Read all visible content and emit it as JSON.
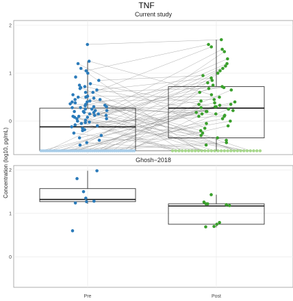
{
  "title": "TNF",
  "ylabel": "Concentration (log10, pg/mL)",
  "x_ticks": [
    "Pre",
    "Post"
  ],
  "colors": {
    "pre": "#2b7bba",
    "post": "#3aa02c",
    "pre_low": "#a9cde8",
    "post_low": "#a6d88a",
    "panel_border": "#9a9a9a",
    "grid": "#ebebeb"
  },
  "chart_data": [
    {
      "type": "box",
      "panel_title": "Current study",
      "categories": [
        "Pre",
        "Post"
      ],
      "ylim": [
        -0.7,
        2.1
      ],
      "yticks": [
        0,
        1,
        2
      ],
      "grid": true,
      "paired_lines": true,
      "boxes": [
        {
          "name": "Pre",
          "q1": -0.62,
          "median": -0.12,
          "q3": 0.27,
          "whisker_low": -0.62,
          "whisker_high": 1.25
        },
        {
          "name": "Post",
          "q1": -0.35,
          "median": 0.27,
          "q3": 0.72,
          "whisker_low": -0.62,
          "whisker_high": 1.7
        }
      ],
      "pre_values": [
        1.6,
        1.25,
        1.2,
        1.1,
        1.05,
        1.0,
        0.92,
        0.85,
        0.78,
        0.72,
        0.7,
        0.65,
        0.6,
        0.55,
        0.52,
        0.5,
        0.48,
        0.45,
        0.42,
        0.4,
        0.38,
        0.36,
        0.33,
        0.3,
        0.28,
        0.25,
        0.22,
        0.2,
        0.18,
        0.15,
        0.12,
        0.1,
        0.08,
        0.05,
        0.02,
        0.0,
        -0.02,
        -0.05,
        -0.08,
        -0.1,
        -0.15,
        -0.2,
        -0.25,
        -0.3,
        -0.35,
        -0.4,
        -0.45,
        -0.5,
        0.25,
        0.2,
        0.15,
        0.3,
        0.1,
        0.05,
        0.35,
        0.4,
        -0.12,
        -0.18,
        0.22,
        0.18,
        0.12,
        0.28,
        0.32,
        0.08,
        -0.03,
        0.45,
        0.5,
        0.6,
        0.68,
        0.75
      ],
      "post_values": [
        1.7,
        1.6,
        1.55,
        1.5,
        1.45,
        1.3,
        1.2,
        1.15,
        1.1,
        1.05,
        1.0,
        0.95,
        0.9,
        0.85,
        0.8,
        0.75,
        0.72,
        0.7,
        0.68,
        0.65,
        0.6,
        0.55,
        0.5,
        0.45,
        0.42,
        0.4,
        0.38,
        0.35,
        0.33,
        0.3,
        0.28,
        0.25,
        0.22,
        0.2,
        0.18,
        0.15,
        0.12,
        0.1,
        0.05,
        0.0,
        -0.05,
        -0.1,
        -0.15,
        -0.2,
        -0.25,
        -0.3,
        -0.35,
        -0.4,
        -0.45,
        -0.5,
        0.3,
        0.35,
        0.2,
        0.15,
        0.1
      ],
      "pre_n_low": 48,
      "post_n_low": 28,
      "low_value": -0.62
    },
    {
      "type": "box",
      "panel_title": "Ghosh−2018",
      "categories": [
        "Pre",
        "Post"
      ],
      "ylim": [
        -0.7,
        2.1
      ],
      "yticks": [
        0,
        1,
        2
      ],
      "grid": true,
      "boxes": [
        {
          "name": "Pre",
          "q1": 1.27,
          "median": 1.32,
          "q3": 1.57,
          "whisker_low": 1.22,
          "whisker_high": 1.98
        },
        {
          "name": "Post",
          "q1": 0.75,
          "median": 1.17,
          "q3": 1.22,
          "whisker_low": 0.68,
          "whisker_high": 1.43
        }
      ],
      "pre_values": [
        1.8,
        1.35,
        1.27,
        1.24,
        1.28,
        1.5,
        1.98,
        0.6
      ],
      "post_values": [
        1.26,
        1.22,
        1.2,
        1.18,
        1.22,
        0.75,
        0.79,
        0.69,
        0.7,
        1.43
      ]
    }
  ]
}
